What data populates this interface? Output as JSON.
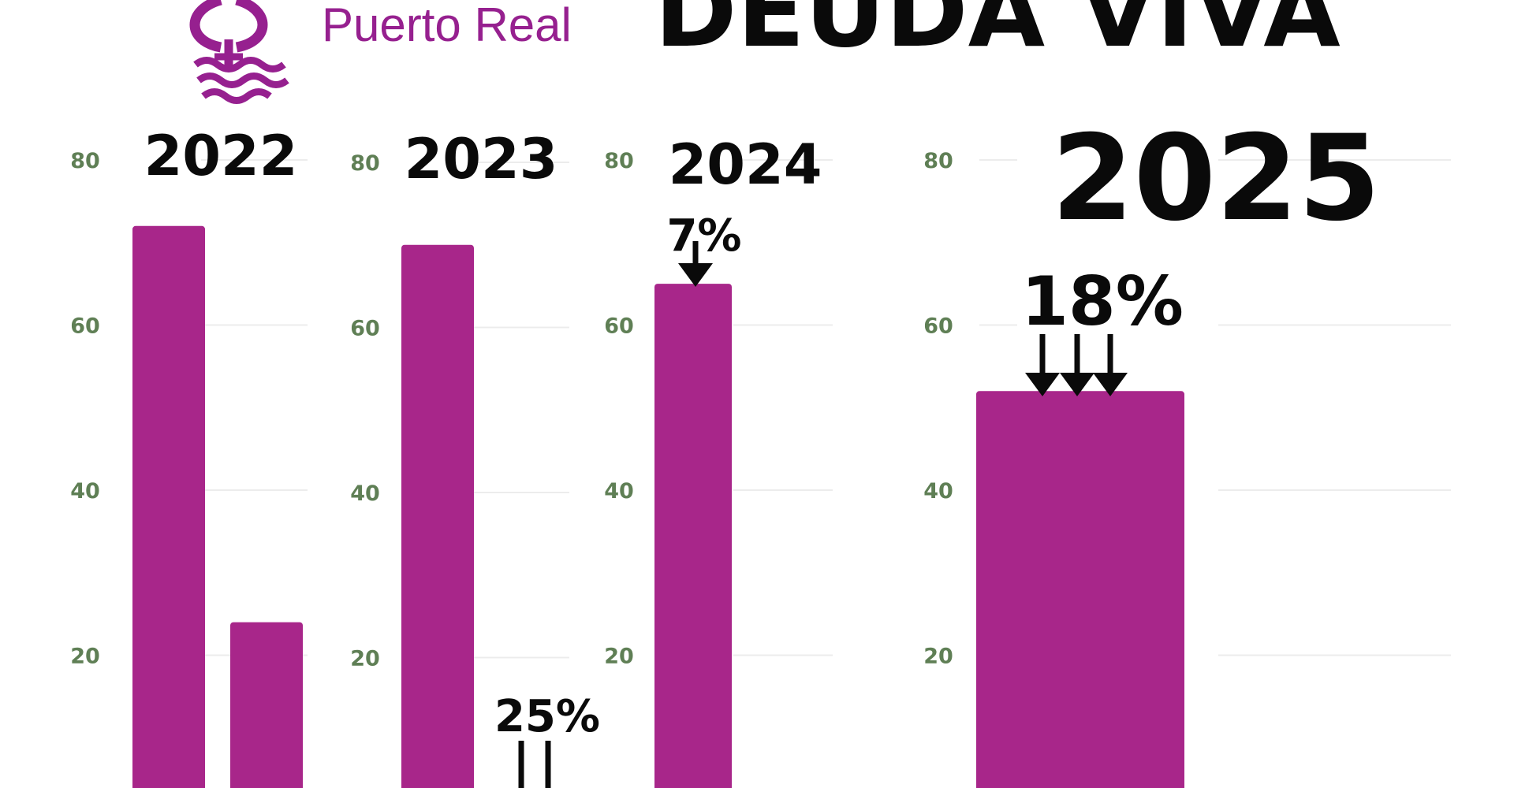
{
  "header": {
    "brand_name": "Puerto Real",
    "title": "DEUDA VIVA",
    "brand_color": "#96208f"
  },
  "chart_data": [
    {
      "type": "bar",
      "title": "2022",
      "ylim": [
        0,
        80
      ],
      "yticks": [
        "80",
        "60",
        "40",
        "20"
      ],
      "series": [
        {
          "name": "Deuda viva",
          "values": [
            72,
            24
          ]
        }
      ]
    },
    {
      "type": "bar",
      "title": "2023",
      "ylim": [
        0,
        80
      ],
      "yticks": [
        "80",
        "60",
        "40",
        "20"
      ],
      "series": [
        {
          "name": "Deuda viva",
          "values": [
            70
          ]
        }
      ],
      "annotations": [
        {
          "text": "25%",
          "arrows": 2
        }
      ]
    },
    {
      "type": "bar",
      "title": "2024",
      "ylim": [
        0,
        80
      ],
      "yticks": [
        "80",
        "60",
        "40",
        "20"
      ],
      "series": [
        {
          "name": "Deuda viva",
          "values": [
            65
          ]
        }
      ],
      "annotations": [
        {
          "text": "7%",
          "arrows": 1
        }
      ]
    },
    {
      "type": "bar",
      "title": "2025",
      "ylim": [
        0,
        80
      ],
      "yticks": [
        "80",
        "60",
        "40",
        "20"
      ],
      "series": [
        {
          "name": "Deuda viva",
          "values": [
            52
          ]
        }
      ],
      "annotations": [
        {
          "text": "18%",
          "arrows": 3
        }
      ]
    }
  ],
  "colors": {
    "bar": "#a8268a",
    "tick_label": "#5f7f55",
    "gridline": "#ececec",
    "text": "#0a0a0a"
  }
}
